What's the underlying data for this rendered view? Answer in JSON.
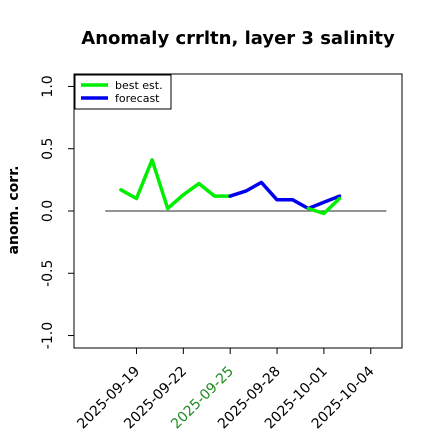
{
  "chart_data": {
    "type": "line",
    "title": "Anomaly crrltn, layer 3 salinity",
    "ylabel": "anom. corr.",
    "xlabel": "",
    "ylim": [
      -1.1,
      1.1
    ],
    "yticks": [
      -1.0,
      -0.5,
      0.0,
      0.5,
      1.0
    ],
    "ytick_labels": [
      "-1.0",
      "-0.5",
      "0.0",
      "0.5",
      "1.0"
    ],
    "xlim": [
      "2025-09-15",
      "2025-10-06"
    ],
    "xticks": [
      "2025-09-19",
      "2025-09-22",
      "2025-09-25",
      "2025-09-28",
      "2025-10-01",
      "2025-10-04"
    ],
    "xtick_colors": [
      "#000000",
      "#000000",
      "#228b22",
      "#000000",
      "#000000",
      "#000000"
    ],
    "reference_line": {
      "y": 0,
      "x_range": [
        "2025-09-17",
        "2025-10-05"
      ],
      "color": "#555555"
    },
    "legend": {
      "placement": "top-left"
    },
    "series": [
      {
        "name": "best est.",
        "color": "#00ee00",
        "x": [
          "2025-09-18",
          "2025-09-19",
          "2025-09-20",
          "2025-09-21",
          "2025-09-22",
          "2025-09-23",
          "2025-09-24",
          "2025-09-25"
        ],
        "y": [
          0.17,
          0.1,
          0.41,
          0.02,
          0.13,
          0.22,
          0.12,
          0.12
        ]
      },
      {
        "name": "forecast",
        "color": "#0000ee",
        "x": [
          "2025-09-25",
          "2025-09-26",
          "2025-09-27",
          "2025-09-28",
          "2025-09-29",
          "2025-09-30",
          "2025-10-01",
          "2025-10-02"
        ],
        "y": [
          0.12,
          0.16,
          0.23,
          0.09,
          0.09,
          0.02,
          0.07,
          0.12
        ]
      },
      {
        "name": "",
        "color": "#00ee00",
        "x": [
          "2025-09-30",
          "2025-10-01",
          "2025-10-02"
        ],
        "y": [
          0.02,
          -0.02,
          0.1
        ]
      }
    ]
  }
}
